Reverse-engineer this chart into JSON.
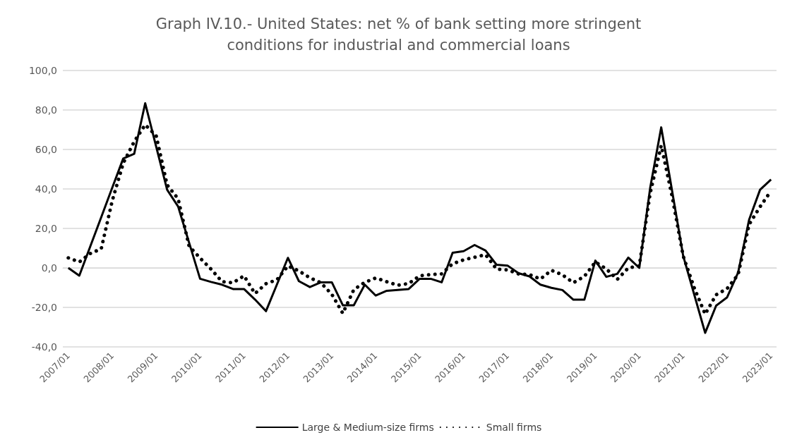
{
  "chart_data": {
    "type": "line",
    "title": "Graph IV.10.- United States: net % of bank setting more stringent\nconditions for industrial and commercial loans",
    "categories": [
      "2007/01",
      null,
      null,
      null,
      "2008/01",
      null,
      null,
      null,
      "2009/01",
      null,
      null,
      null,
      "2010/01",
      null,
      null,
      null,
      "2011/01",
      null,
      null,
      null,
      "2012/01",
      null,
      null,
      null,
      "2013/01",
      null,
      null,
      null,
      "2014/01",
      null,
      null,
      null,
      "2015/01",
      null,
      null,
      null,
      "2016/01",
      null,
      null,
      null,
      "2017/01",
      null,
      null,
      null,
      "2018/01",
      null,
      null,
      null,
      "2019/01",
      null,
      null,
      null,
      "2020/01",
      null,
      null,
      null,
      "2021/01",
      null,
      null,
      null,
      "2022/01",
      null,
      null,
      null,
      "2023/01"
    ],
    "series": [
      {
        "name": "Large & Medium-size firms",
        "color": "#000000",
        "line_style": "solid",
        "values": [
          0,
          -3.9,
          10.9,
          25.7,
          40.6,
          55.4,
          57.8,
          83.4,
          61.5,
          39.6,
          31.1,
          12.8,
          -5.5,
          -7.1,
          -8.5,
          -10.7,
          -10.7,
          -16,
          -21.9,
          -8.4,
          5.1,
          -6.7,
          -9.7,
          -7.3,
          -7.3,
          -18.9,
          -18.9,
          -8.5,
          -14,
          -11.6,
          -11.2,
          -10.7,
          -5.5,
          -5.5,
          -7.3,
          7.7,
          8.5,
          11.6,
          8.8,
          1.6,
          1.2,
          -2.7,
          -4.3,
          -8.5,
          -10.1,
          -11.2,
          -16.1,
          -16.1,
          3.7,
          -4.5,
          -3,
          5.2,
          0,
          40.8,
          71.2,
          38.7,
          6.1,
          -13.4,
          -32.9,
          -19.1,
          -14.9,
          -2.4,
          24.4,
          39.6,
          44.8
        ]
      },
      {
        "name": "Small firms",
        "color": "#000000",
        "line_style": "dotted",
        "values": [
          5.1,
          3,
          7.3,
          9.7,
          34,
          53,
          64,
          72.5,
          67,
          42,
          35,
          11,
          5,
          -0.6,
          -7,
          -7.5,
          -4,
          -13,
          -8,
          -6,
          1,
          -1.5,
          -5,
          -7.5,
          -13.4,
          -23,
          -11,
          -7.3,
          -5.1,
          -7,
          -8.8,
          -7.9,
          -4,
          -3.4,
          -3,
          2.1,
          4.1,
          5.4,
          6.7,
          -0.6,
          -1,
          -3,
          -3.4,
          -5.6,
          -1.2,
          -3.5,
          -7.5,
          -4.3,
          3,
          -0.5,
          -5.8,
          0,
          1,
          38,
          62,
          36,
          6,
          -10,
          -23.4,
          -13.6,
          -10.5,
          -3.4,
          22,
          31,
          39
        ]
      }
    ],
    "ylim": [
      -40,
      100
    ],
    "yticks": [
      {
        "value": -40,
        "label": "-40,0"
      },
      {
        "value": -20,
        "label": "-20,0"
      },
      {
        "value": 0,
        "label": "0,0"
      },
      {
        "value": 20,
        "label": "20,0"
      },
      {
        "value": 40,
        "label": "40,0"
      },
      {
        "value": 60,
        "label": "60,0"
      },
      {
        "value": 80,
        "label": "80,0"
      },
      {
        "value": 100,
        "label": "100,0"
      }
    ],
    "grid": "y",
    "legend": "bottom",
    "marker": "none"
  }
}
